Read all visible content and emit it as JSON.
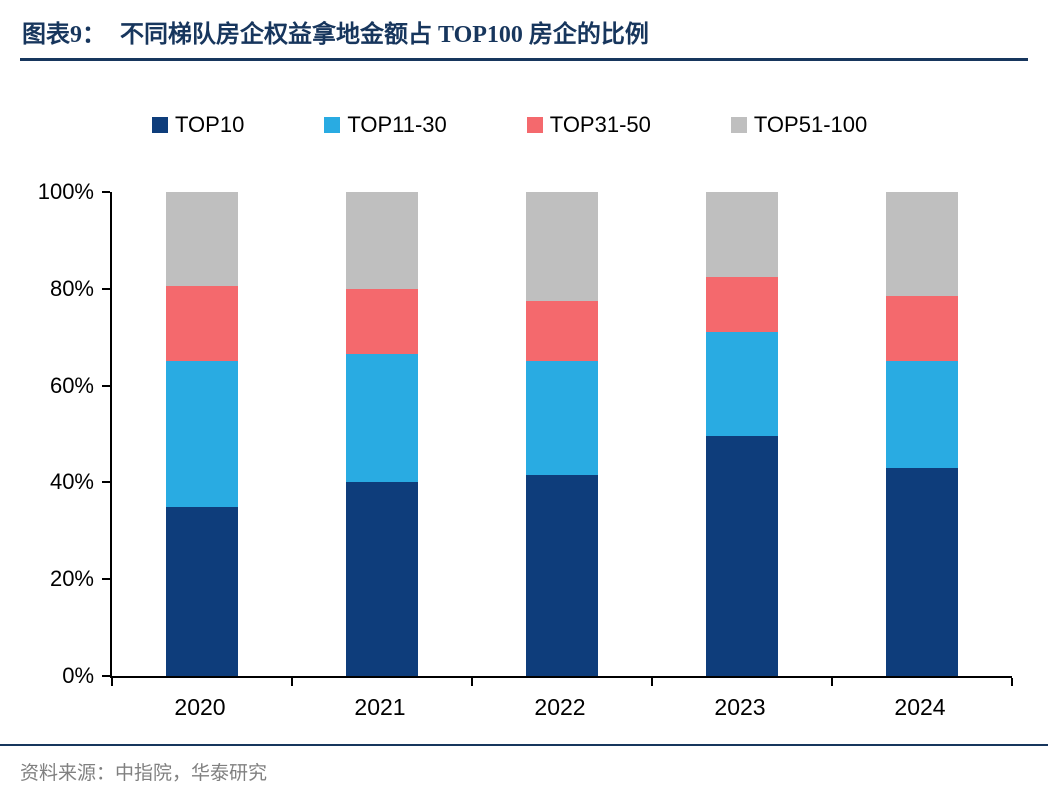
{
  "header": {
    "label": "图表9：",
    "title": "不同梯队房企权益拿地金额占 TOP100 房企的比例"
  },
  "footer": {
    "source": "资料来源：中指院，华泰研究"
  },
  "chart_data": {
    "type": "bar",
    "stacked": true,
    "unit": "%",
    "title": "不同梯队房企权益拿地金额占 TOP100 房企的比例",
    "categories": [
      "2020",
      "2021",
      "2022",
      "2023",
      "2024"
    ],
    "series": [
      {
        "name": "TOP10",
        "color": "#0e3d7b",
        "values": [
          35,
          40,
          41.5,
          49.5,
          43
        ]
      },
      {
        "name": "TOP11-30",
        "color": "#29abe2",
        "values": [
          30,
          26.5,
          23.5,
          21.5,
          22
        ]
      },
      {
        "name": "TOP31-50",
        "color": "#f4696d",
        "values": [
          15.5,
          13.5,
          12.5,
          11.5,
          13.5
        ]
      },
      {
        "name": "TOP51-100",
        "color": "#bfbfbf",
        "values": [
          19.5,
          20,
          22.5,
          17.5,
          21.5
        ]
      }
    ],
    "ylim": [
      0,
      100
    ],
    "y_ticks": [
      "0%",
      "20%",
      "40%",
      "60%",
      "80%",
      "100%"
    ],
    "legend_position": "top",
    "grid": false
  }
}
